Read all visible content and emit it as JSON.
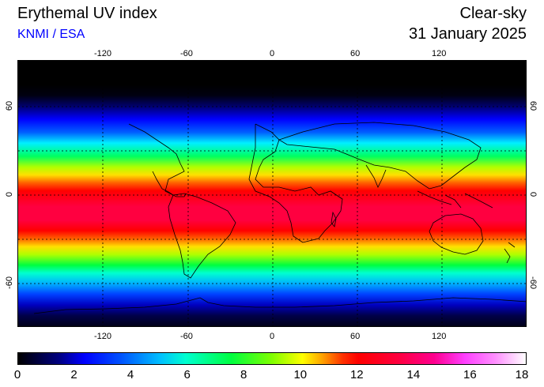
{
  "header": {
    "title": "Erythemal UV index",
    "subtitle": "KNMI / ESA",
    "mode": "Clear-sky",
    "date": "31 January 2025"
  },
  "map": {
    "top_lon_ticks": [
      "-120",
      "-60",
      "0",
      "60",
      "120"
    ],
    "bottom_lon_ticks": [
      "-120",
      "-60",
      "0",
      "60",
      "120"
    ],
    "left_lat_ticks": [
      "60",
      "0",
      "-60"
    ],
    "right_lat_ticks": [
      "60",
      "0",
      "-60"
    ],
    "gridlines": true
  },
  "colorbar": {
    "labels": [
      "0",
      "2",
      "4",
      "6",
      "8",
      "10",
      "12",
      "14",
      "16",
      "18"
    ],
    "min": 0,
    "max": 18
  },
  "colors": {
    "subtitle": "#0000ff",
    "background": "#ffffff"
  }
}
